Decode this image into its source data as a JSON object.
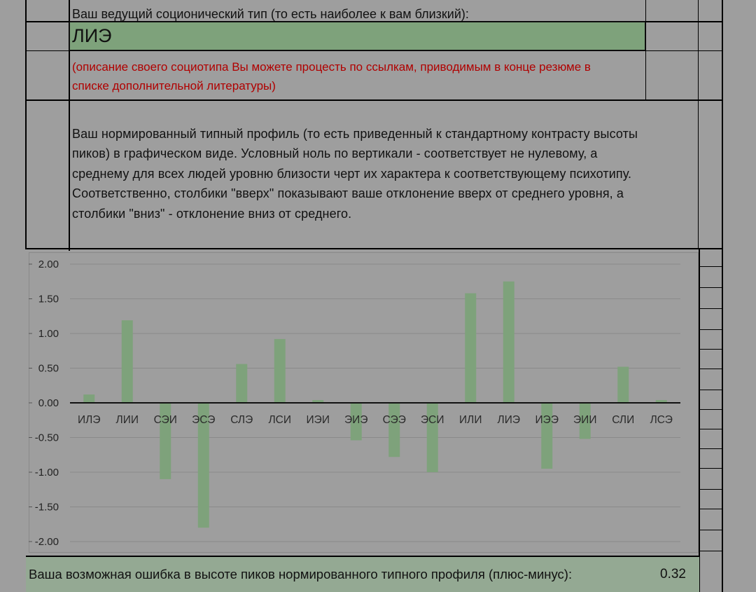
{
  "header": {
    "label": "Ваш ведущий соционический тип (то есть наиболее к вам близкий):",
    "type_name": "ЛИЭ",
    "description_lines": [
      "(описание своего социотипа Вы можете процесть по ссылкам, приводимым в конце резюме в",
      "списке дополнительной литературы)"
    ]
  },
  "paragraph": {
    "lines": [
      "Ваш нормированный типный профиль (то есть приведенный к стандартному контрасту высоты",
      "пиков) в графическом виде. Условный ноль по вертикали - соответствует не нулевому, а",
      "среднему для всех людей уровню близости черт их характера к соответствующему психотипу.",
      "Соответственно, столбики \"вверх\" показывают ваше отклонение вверх от среднего уровня, а",
      "столбики \"вниз\" - отклонение вниз от среднего."
    ]
  },
  "chart_data": {
    "type": "bar",
    "categories": [
      "ИЛЭ",
      "ЛИИ",
      "СЭИ",
      "ЭСЭ",
      "СЛЭ",
      "ЛСИ",
      "ИЭИ",
      "ЭИЭ",
      "СЭЭ",
      "ЭСИ",
      "ИЛИ",
      "ЛИЭ",
      "ИЭЭ",
      "ЭИИ",
      "СЛИ",
      "ЛСЭ"
    ],
    "values": [
      0.12,
      1.19,
      -1.1,
      -1.8,
      0.56,
      0.92,
      0.04,
      -0.54,
      -0.78,
      -1.0,
      1.58,
      1.75,
      -0.95,
      -0.52,
      0.52,
      0.04
    ],
    "y_ticks": [
      "2.00",
      "1.50",
      "1.00",
      "0.50",
      "0.00",
      "-0.50",
      "-1.00",
      "-1.50",
      "-2.00"
    ],
    "ylim": [
      -2.0,
      2.0
    ],
    "grid": true,
    "bar_color": "#7ea27b",
    "title": "",
    "xlabel": "",
    "ylabel": ""
  },
  "footer": {
    "label": "Ваша возможная ошибка в высоте пиков нормированного типного профиля (плюс-минус):",
    "value": "0.32"
  }
}
